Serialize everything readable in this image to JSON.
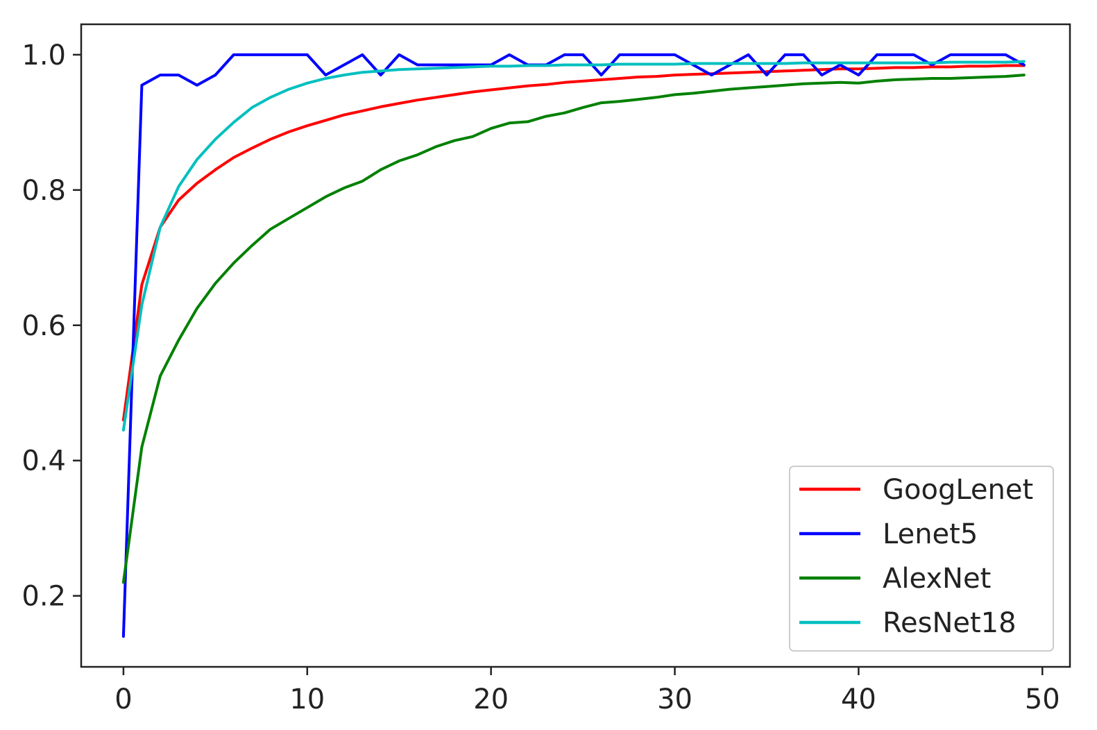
{
  "chart_data": {
    "type": "line",
    "title": "",
    "xlabel": "",
    "ylabel": "",
    "xlim": [
      -2.3,
      51.5
    ],
    "ylim": [
      0.095,
      1.045
    ],
    "x_ticks": [
      0,
      10,
      20,
      30,
      40,
      50
    ],
    "x_tick_labels": [
      "0",
      "10",
      "20",
      "30",
      "40",
      "50"
    ],
    "y_ticks": [
      0.2,
      0.4,
      0.6,
      0.8,
      1.0
    ],
    "y_tick_labels": [
      "0.2",
      "0.4",
      "0.6",
      "0.8",
      "1.0"
    ],
    "grid": false,
    "legend_position": "lower-right",
    "x": [
      0,
      1,
      2,
      3,
      4,
      5,
      6,
      7,
      8,
      9,
      10,
      11,
      12,
      13,
      14,
      15,
      16,
      17,
      18,
      19,
      20,
      21,
      22,
      23,
      24,
      25,
      26,
      27,
      28,
      29,
      30,
      31,
      32,
      33,
      34,
      35,
      36,
      37,
      38,
      39,
      40,
      41,
      42,
      43,
      44,
      45,
      46,
      47,
      48,
      49
    ],
    "series": [
      {
        "name": "GoogLenet",
        "color": "#ff0000",
        "values": [
          0.46,
          0.66,
          0.745,
          0.785,
          0.81,
          0.83,
          0.848,
          0.862,
          0.875,
          0.886,
          0.895,
          0.903,
          0.911,
          0.917,
          0.923,
          0.928,
          0.933,
          0.937,
          0.941,
          0.945,
          0.948,
          0.951,
          0.954,
          0.956,
          0.959,
          0.961,
          0.963,
          0.965,
          0.967,
          0.968,
          0.97,
          0.971,
          0.972,
          0.973,
          0.974,
          0.975,
          0.976,
          0.977,
          0.978,
          0.979,
          0.979,
          0.98,
          0.981,
          0.981,
          0.982,
          0.982,
          0.983,
          0.983,
          0.984,
          0.984
        ]
      },
      {
        "name": "Lenet5",
        "color": "#0000ff",
        "values": [
          0.14,
          0.955,
          0.97,
          0.97,
          0.955,
          0.97,
          1.0,
          1.0,
          1.0,
          1.0,
          1.0,
          0.97,
          0.985,
          1.0,
          0.97,
          1.0,
          0.985,
          0.985,
          0.985,
          0.985,
          0.985,
          1.0,
          0.985,
          0.985,
          1.0,
          1.0,
          0.97,
          1.0,
          1.0,
          1.0,
          1.0,
          0.985,
          0.97,
          0.985,
          1.0,
          0.97,
          1.0,
          1.0,
          0.97,
          0.985,
          0.97,
          1.0,
          1.0,
          1.0,
          0.985,
          1.0,
          1.0,
          1.0,
          1.0,
          0.985
        ]
      },
      {
        "name": "AlexNet",
        "color": "#008000",
        "values": [
          0.22,
          0.42,
          0.525,
          0.578,
          0.625,
          0.662,
          0.692,
          0.718,
          0.742,
          0.758,
          0.774,
          0.79,
          0.803,
          0.813,
          0.83,
          0.843,
          0.852,
          0.864,
          0.873,
          0.879,
          0.891,
          0.899,
          0.901,
          0.909,
          0.914,
          0.922,
          0.929,
          0.931,
          0.934,
          0.937,
          0.941,
          0.943,
          0.946,
          0.949,
          0.951,
          0.953,
          0.955,
          0.957,
          0.958,
          0.959,
          0.958,
          0.961,
          0.963,
          0.964,
          0.965,
          0.965,
          0.966,
          0.967,
          0.968,
          0.97
        ]
      },
      {
        "name": "ResNet18",
        "color": "#00bfbf",
        "values": [
          0.445,
          0.63,
          0.745,
          0.805,
          0.845,
          0.875,
          0.9,
          0.922,
          0.937,
          0.949,
          0.958,
          0.965,
          0.97,
          0.974,
          0.976,
          0.978,
          0.979,
          0.98,
          0.981,
          0.982,
          0.983,
          0.983,
          0.984,
          0.984,
          0.985,
          0.985,
          0.985,
          0.986,
          0.986,
          0.986,
          0.986,
          0.987,
          0.987,
          0.987,
          0.987,
          0.987,
          0.987,
          0.988,
          0.988,
          0.988,
          0.988,
          0.988,
          0.988,
          0.988,
          0.988,
          0.989,
          0.989,
          0.989,
          0.989,
          0.99
        ]
      }
    ]
  }
}
